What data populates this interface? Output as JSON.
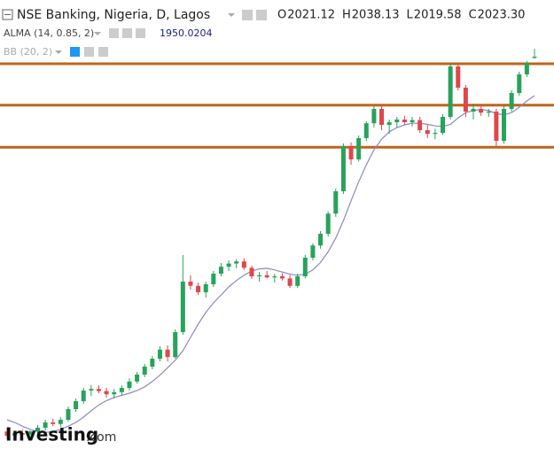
{
  "chart_data": {
    "type": "candlestick",
    "title": "NSE Banking, Nigeria, D, Lagos",
    "legend_values": [
      {
        "label": "O",
        "value": "2021.12"
      },
      {
        "label": "H",
        "value": "2038.13"
      },
      {
        "label": "L",
        "value": "2019.58"
      },
      {
        "label": "C",
        "value": "2023.30"
      }
    ],
    "indicator": "BB (20, 2)",
    "logo": {
      "brand": "Investing",
      "suffix": ".com"
    },
    "ylim": [
      1285,
      2130
    ],
    "up_color": "#27a35a",
    "down_color": "#e0464a",
    "hlines": [
      2010,
      1932,
      1853
    ],
    "hline_color": "#c0641a",
    "candles": [
      [
        1318,
        1325,
        1305,
        1310
      ],
      [
        1310,
        1318,
        1300,
        1315
      ],
      [
        1315,
        1322,
        1308,
        1312
      ],
      [
        1312,
        1320,
        1305,
        1318
      ],
      [
        1318,
        1330,
        1312,
        1325
      ],
      [
        1325,
        1340,
        1320,
        1335
      ],
      [
        1335,
        1342,
        1328,
        1332
      ],
      [
        1332,
        1345,
        1326,
        1340
      ],
      [
        1340,
        1365,
        1336,
        1360
      ],
      [
        1360,
        1380,
        1355,
        1375
      ],
      [
        1375,
        1400,
        1370,
        1395
      ],
      [
        1395,
        1405,
        1385,
        1398
      ],
      [
        1398,
        1405,
        1390,
        1394
      ],
      [
        1394,
        1400,
        1382,
        1388
      ],
      [
        1388,
        1398,
        1380,
        1392
      ],
      [
        1392,
        1405,
        1386,
        1400
      ],
      [
        1400,
        1418,
        1395,
        1412
      ],
      [
        1412,
        1430,
        1408,
        1425
      ],
      [
        1425,
        1445,
        1420,
        1440
      ],
      [
        1440,
        1460,
        1435,
        1455
      ],
      [
        1455,
        1478,
        1450,
        1472
      ],
      [
        1472,
        1480,
        1450,
        1458
      ],
      [
        1458,
        1510,
        1455,
        1505
      ],
      [
        1505,
        1650,
        1500,
        1600
      ],
      [
        1600,
        1612,
        1585,
        1592
      ],
      [
        1592,
        1598,
        1575,
        1580
      ],
      [
        1580,
        1600,
        1570,
        1595
      ],
      [
        1595,
        1620,
        1590,
        1615
      ],
      [
        1615,
        1635,
        1610,
        1628
      ],
      [
        1628,
        1640,
        1620,
        1634
      ],
      [
        1634,
        1642,
        1625,
        1638
      ],
      [
        1638,
        1644,
        1622,
        1626
      ],
      [
        1626,
        1630,
        1605,
        1610
      ],
      [
        1610,
        1618,
        1600,
        1612
      ],
      [
        1612,
        1620,
        1606,
        1608
      ],
      [
        1608,
        1615,
        1598,
        1610
      ],
      [
        1610,
        1616,
        1602,
        1606
      ],
      [
        1606,
        1612,
        1588,
        1592
      ],
      [
        1592,
        1615,
        1588,
        1610
      ],
      [
        1610,
        1650,
        1606,
        1645
      ],
      [
        1645,
        1672,
        1640,
        1668
      ],
      [
        1668,
        1695,
        1662,
        1690
      ],
      [
        1690,
        1732,
        1685,
        1728
      ],
      [
        1728,
        1775,
        1722,
        1770
      ],
      [
        1770,
        1860,
        1765,
        1855
      ],
      [
        1855,
        1862,
        1820,
        1830
      ],
      [
        1830,
        1875,
        1826,
        1870
      ],
      [
        1870,
        1902,
        1865,
        1898
      ],
      [
        1898,
        1930,
        1890,
        1925
      ],
      [
        1925,
        1930,
        1885,
        1895
      ],
      [
        1895,
        1905,
        1878,
        1900
      ],
      [
        1900,
        1910,
        1890,
        1905
      ],
      [
        1905,
        1912,
        1895,
        1900
      ],
      [
        1900,
        1910,
        1892,
        1904
      ],
      [
        1904,
        1910,
        1880,
        1885
      ],
      [
        1885,
        1895,
        1870,
        1878
      ],
      [
        1878,
        1888,
        1868,
        1880
      ],
      [
        1880,
        1915,
        1876,
        1910
      ],
      [
        1910,
        2010,
        1905,
        2005
      ],
      [
        2005,
        2008,
        1960,
        1965
      ],
      [
        1965,
        1970,
        1910,
        1920
      ],
      [
        1920,
        1935,
        1905,
        1925
      ],
      [
        1925,
        1932,
        1912,
        1918
      ],
      [
        1918,
        1925,
        1910,
        1920
      ],
      [
        1920,
        1925,
        1855,
        1865
      ],
      [
        1865,
        1930,
        1860,
        1925
      ],
      [
        1925,
        1960,
        1920,
        1955
      ],
      [
        1955,
        1995,
        1950,
        1990
      ],
      [
        1990,
        2015,
        1985,
        2012
      ],
      [
        2021.12,
        2038.13,
        2019.58,
        2023.3
      ]
    ],
    "series": [
      {
        "name": "ALMA (14, 0.85, 2)",
        "color": "#8c88c8",
        "values": [
          1340,
          1335,
          1328,
          1322,
          1318,
          1316,
          1318,
          1322,
          1328,
          1335,
          1345,
          1357,
          1368,
          1376,
          1382,
          1386,
          1390,
          1395,
          1402,
          1412,
          1424,
          1438,
          1452,
          1470,
          1495,
          1520,
          1542,
          1560,
          1575,
          1590,
          1602,
          1612,
          1620,
          1624,
          1625,
          1622,
          1618,
          1614,
          1612,
          1614,
          1622,
          1636,
          1656,
          1682,
          1715,
          1752,
          1788,
          1820,
          1848,
          1868,
          1882,
          1890,
          1895,
          1898,
          1898,
          1896,
          1893,
          1892,
          1896,
          1908,
          1918,
          1922,
          1924,
          1922,
          1916,
          1914,
          1918,
          1928,
          1940,
          1950.0204
        ]
      }
    ]
  }
}
